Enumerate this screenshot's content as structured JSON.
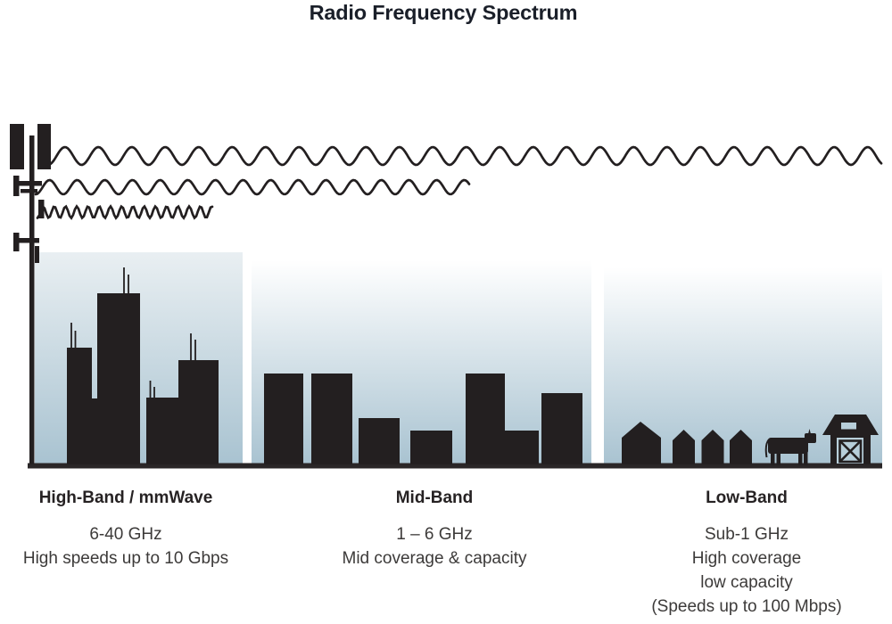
{
  "title": "Radio Frequency Spectrum",
  "colors": {
    "ink": "#231f20",
    "title_ink": "#1a1f29",
    "heading_ink": "#262223",
    "text_ink": "#3c3a39",
    "panel_top": "#ffffff",
    "panel_top_high": "#e9eff2",
    "panel_bottom": "#a9c3d1",
    "ground": "#2a2627",
    "light_accent": "#b7ced9"
  },
  "bands": [
    {
      "name": "High-Band / mmWave",
      "lines": [
        "6-40 GHz",
        "High speeds up to 10 Gbps"
      ]
    },
    {
      "name": "Mid-Band",
      "lines": [
        "1 – 6 GHz",
        "Mid coverage & capacity"
      ]
    },
    {
      "name": "Low-Band",
      "lines": [
        "Sub-1 GHz",
        "High coverage",
        "low capacity",
        "(Speeds up to 100 Mbps)"
      ]
    }
  ],
  "icons": {
    "tower": "cell-tower-icon",
    "wave_top": "long-wavelength-wave-icon",
    "wave_middle": "mid-wavelength-wave-icon",
    "wave_bottom": "short-wavelength-wave-icon",
    "high_band_scene": "city-skyline-icon",
    "mid_band_scene": "town-buildings-icon",
    "low_band_scene": "rural-houses-cow-barn-icon"
  }
}
